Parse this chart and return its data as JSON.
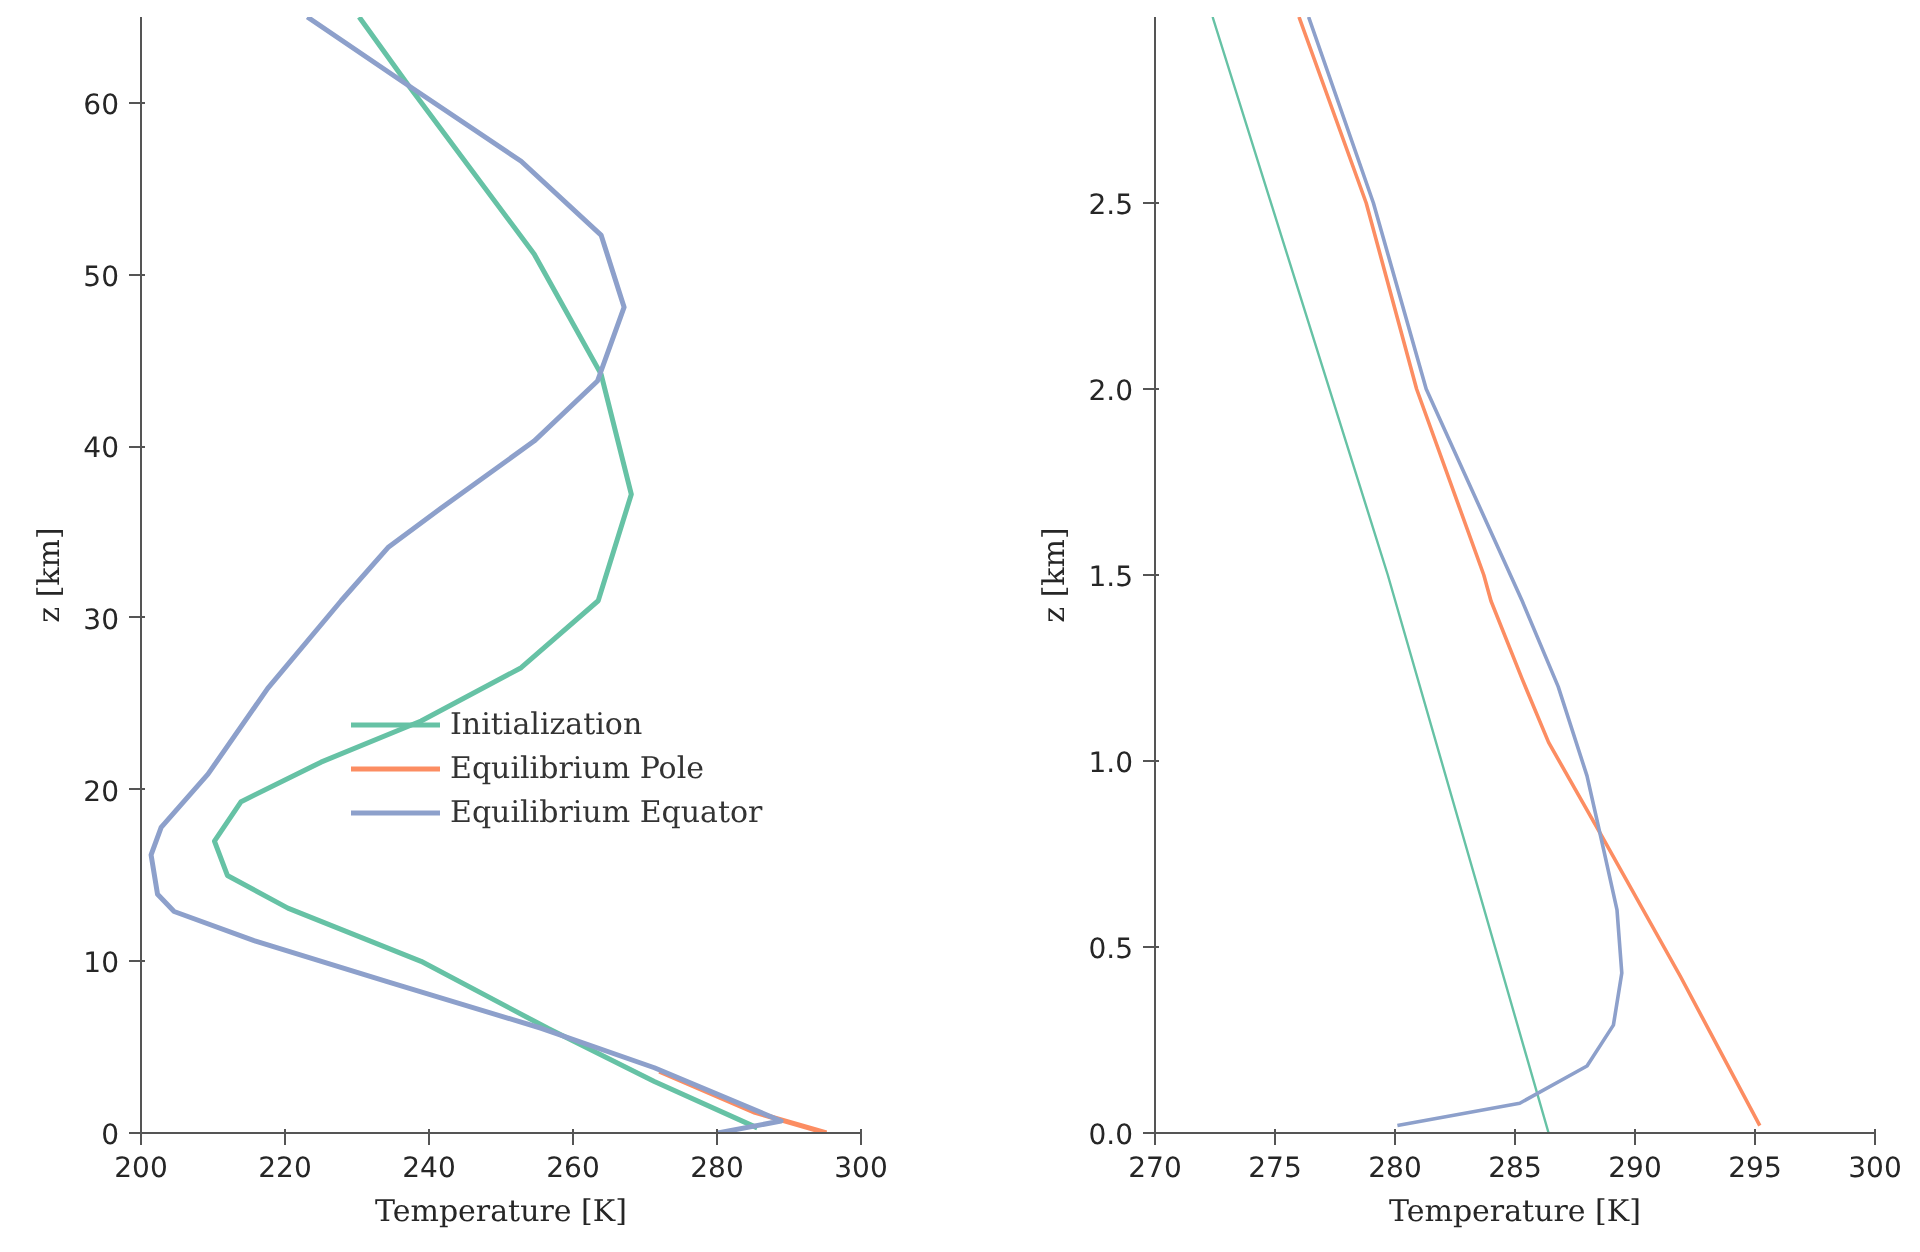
{
  "chart_data": [
    {
      "type": "line",
      "xlabel": "Temperature [K]",
      "ylabel": "z [km]",
      "xlim": [
        200,
        300
      ],
      "ylim": [
        0,
        65
      ],
      "xticks": [
        200,
        220,
        240,
        260,
        280,
        300
      ],
      "yticks": [
        0,
        10,
        20,
        30,
        40,
        50,
        60
      ],
      "grid": false,
      "legend": "right",
      "line_style": "solid",
      "series": [
        {
          "name": "Initialization",
          "color": "#66c2a5",
          "x": [
            230.3,
            237.0,
            254.6,
            263.9,
            268.1,
            263.5,
            252.8,
            238.9,
            225.0,
            213.9,
            210.2,
            212.0,
            220.4,
            238.9,
            256.5,
            271.3,
            285.6
          ],
          "values": [
            65.0,
            61.1,
            51.2,
            44.2,
            37.2,
            31.0,
            27.1,
            24.0,
            21.6,
            19.3,
            17.0,
            15.0,
            13.1,
            10.0,
            6.1,
            3.0,
            0.3
          ]
        },
        {
          "name": "Equilibrium Pole",
          "color": "#fc8d62",
          "x": [
            272.0,
            285.3,
            295.2
          ],
          "values": [
            3.6,
            1.2,
            0.0
          ]
        },
        {
          "name": "Equilibrium Equator",
          "color": "#8da0cb",
          "x": [
            223.1,
            236.1,
            252.8,
            263.9,
            267.1,
            263.4,
            254.6,
            241.7,
            234.3,
            227.8,
            217.6,
            209.3,
            202.8,
            201.4,
            202.3,
            204.6,
            215.7,
            234.3,
            255.6,
            271.3,
            288.9,
            280.1
          ],
          "values": [
            65.0,
            61.3,
            56.6,
            52.3,
            48.1,
            43.8,
            40.3,
            36.4,
            34.1,
            31.0,
            25.9,
            20.9,
            17.8,
            16.2,
            13.9,
            12.9,
            11.2,
            8.8,
            6.1,
            3.8,
            0.7,
            0.0
          ]
        }
      ]
    },
    {
      "type": "line",
      "xlabel": "Temperature [K]",
      "ylabel": "z [km]",
      "xlim": [
        270,
        300
      ],
      "ylim": [
        0,
        3.0
      ],
      "xticks": [
        270,
        275,
        280,
        285,
        290,
        295,
        300
      ],
      "yticks": [
        {
          "value": 0,
          "label": "0.0"
        },
        0.5,
        {
          "value": 1,
          "label": "1.0"
        },
        1.5,
        {
          "value": 2,
          "label": "2.0"
        },
        2.5
      ],
      "grid": false,
      "line_style": "solid",
      "series": [
        {
          "color": "#66c2a5",
          "x": [
            286.4,
            279.7,
            272.4
          ],
          "values": [
            0.0,
            1.5,
            3.0
          ]
        },
        {
          "color": "#fc8d62",
          "x": [
            295.2,
            291.9,
            288.6,
            286.4,
            285.3,
            284.0,
            283.7,
            280.9,
            278.8,
            276.0
          ],
          "values": [
            0.02,
            0.42,
            0.8,
            1.05,
            1.22,
            1.43,
            1.5,
            2.0,
            2.5,
            3.0
          ]
        },
        {
          "color": "#8da0cb",
          "x": [
            280.1,
            285.2,
            288.0,
            289.1,
            289.45,
            289.25,
            288.7,
            288.0,
            286.8,
            285.3,
            281.3,
            279.1,
            276.4
          ],
          "values": [
            0.02,
            0.08,
            0.18,
            0.29,
            0.43,
            0.6,
            0.76,
            0.96,
            1.2,
            1.43,
            2.0,
            2.5,
            3.0
          ]
        }
      ]
    }
  ]
}
